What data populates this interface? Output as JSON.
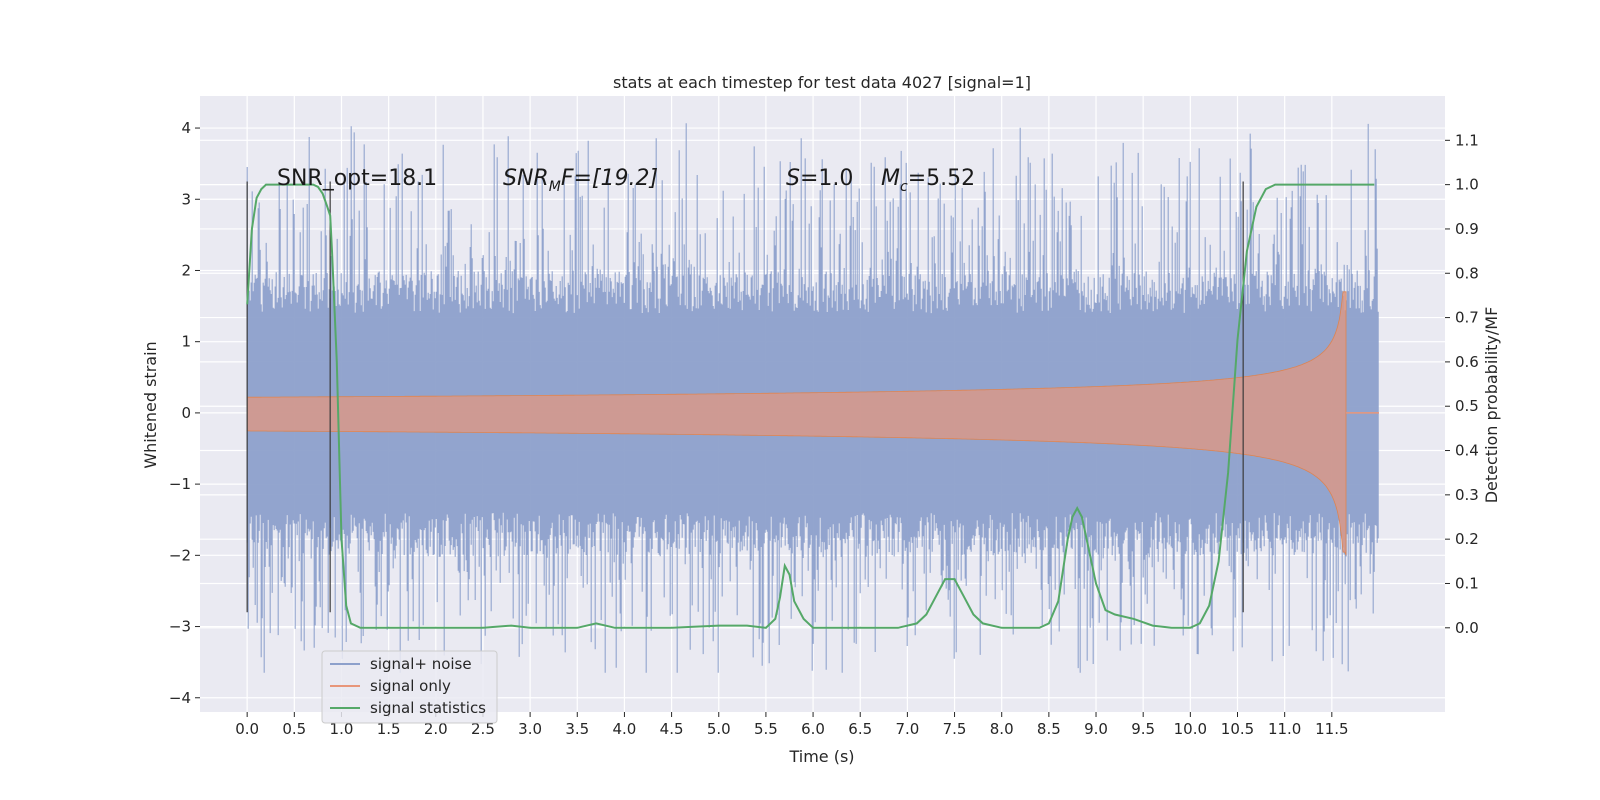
{
  "chart_data": {
    "type": "line",
    "title": "stats at each timestep for test data 4027 [signal=1]",
    "xlabel": "Time (s)",
    "ylabel_left": "Whitened strain",
    "ylabel_right": "Detection probability/MF",
    "xlim": [
      -0.5,
      12.7
    ],
    "ylim_left": [
      -4.2,
      4.45
    ],
    "ylim_right": [
      -0.19,
      1.2
    ],
    "xticks": [
      "0.0",
      "0.5",
      "1.0",
      "1.5",
      "2.0",
      "2.5",
      "3.0",
      "3.5",
      "4.0",
      "4.5",
      "5.0",
      "5.5",
      "6.0",
      "6.5",
      "7.0",
      "7.5",
      "8.0",
      "8.5",
      "9.0",
      "9.5",
      "10.0",
      "10.5",
      "11.0",
      "11.5"
    ],
    "yticks_left": [
      "4",
      "3",
      "2",
      "1",
      "0",
      "−1",
      "−2",
      "−3",
      "−4"
    ],
    "yticks_right": [
      "1.1",
      "1.0",
      "0.9",
      "0.8",
      "0.7",
      "0.6",
      "0.5",
      "0.4",
      "0.3",
      "0.2",
      "0.1",
      "0.0"
    ],
    "grid": true,
    "legend_position": "lower-left",
    "annotations": {
      "snr_opt": "SNR_opt=18.1",
      "snr_mf_sym": "SNR",
      "snr_mf_sub": "M",
      "snr_mf_rest": "F=[19.2]",
      "s_sym": "S",
      "s_rest": "=1.0",
      "mc_sym": "M",
      "mc_sub": "c",
      "mc_rest": "=5.52"
    },
    "window_markers": [
      {
        "x": 0.0,
        "y_range": [
          -2.8,
          3.25
        ]
      },
      {
        "x": 0.88,
        "y_range": [
          -2.8,
          3.25
        ]
      },
      {
        "x": 10.56,
        "y_range": [
          -2.8,
          3.25
        ]
      }
    ],
    "series": [
      {
        "name": "signal+ noise",
        "axis": "left",
        "color": "#8da0cb",
        "time_range": [
          0.0,
          12.0
        ],
        "envelope": {
          "core": 1.45,
          "max_spike": 4.1,
          "min_spike": -3.65
        }
      },
      {
        "name": "signal only",
        "axis": "left",
        "color": "#e8967a",
        "time_range": [
          0.0,
          12.0
        ],
        "chirp": {
          "merger_time": 11.65,
          "peak_amplitude": 1.7,
          "min_amplitude": -2.0
        }
      },
      {
        "name": "signal statistics",
        "axis": "right",
        "color": "#55a868",
        "x": [
          0.0,
          0.05,
          0.1,
          0.15,
          0.2,
          0.3,
          0.4,
          0.5,
          0.6,
          0.7,
          0.75,
          0.8,
          0.85,
          0.88,
          0.9,
          0.95,
          1.0,
          1.05,
          1.1,
          1.2,
          1.5,
          2.0,
          2.5,
          2.8,
          3.0,
          3.5,
          3.7,
          3.9,
          4.0,
          4.5,
          5.0,
          5.3,
          5.5,
          5.6,
          5.65,
          5.7,
          5.75,
          5.8,
          5.9,
          6.0,
          6.5,
          6.9,
          7.1,
          7.2,
          7.3,
          7.4,
          7.5,
          7.6,
          7.7,
          7.8,
          8.0,
          8.4,
          8.5,
          8.6,
          8.7,
          8.75,
          8.8,
          8.85,
          8.9,
          9.0,
          9.1,
          9.2,
          9.4,
          9.6,
          9.8,
          10.0,
          10.1,
          10.2,
          10.3,
          10.4,
          10.5,
          10.6,
          10.7,
          10.8,
          10.9,
          11.0,
          11.5,
          11.95
        ],
        "y": [
          0.73,
          0.9,
          0.97,
          0.99,
          1.0,
          1.0,
          1.0,
          1.0,
          1.0,
          1.0,
          0.995,
          0.98,
          0.95,
          0.93,
          0.85,
          0.6,
          0.2,
          0.05,
          0.01,
          0.0,
          0.0,
          0.0,
          0.0,
          0.005,
          0.0,
          0.0,
          0.01,
          0.0,
          0.0,
          0.0,
          0.005,
          0.005,
          0.0,
          0.02,
          0.07,
          0.14,
          0.12,
          0.06,
          0.02,
          0.0,
          0.0,
          0.0,
          0.01,
          0.03,
          0.07,
          0.11,
          0.11,
          0.07,
          0.03,
          0.01,
          0.0,
          0.0,
          0.01,
          0.06,
          0.2,
          0.25,
          0.27,
          0.25,
          0.2,
          0.1,
          0.04,
          0.03,
          0.02,
          0.005,
          0.0,
          0.0,
          0.01,
          0.05,
          0.15,
          0.35,
          0.65,
          0.85,
          0.95,
          0.99,
          1.0,
          1.0,
          1.0,
          1.0
        ]
      }
    ]
  }
}
